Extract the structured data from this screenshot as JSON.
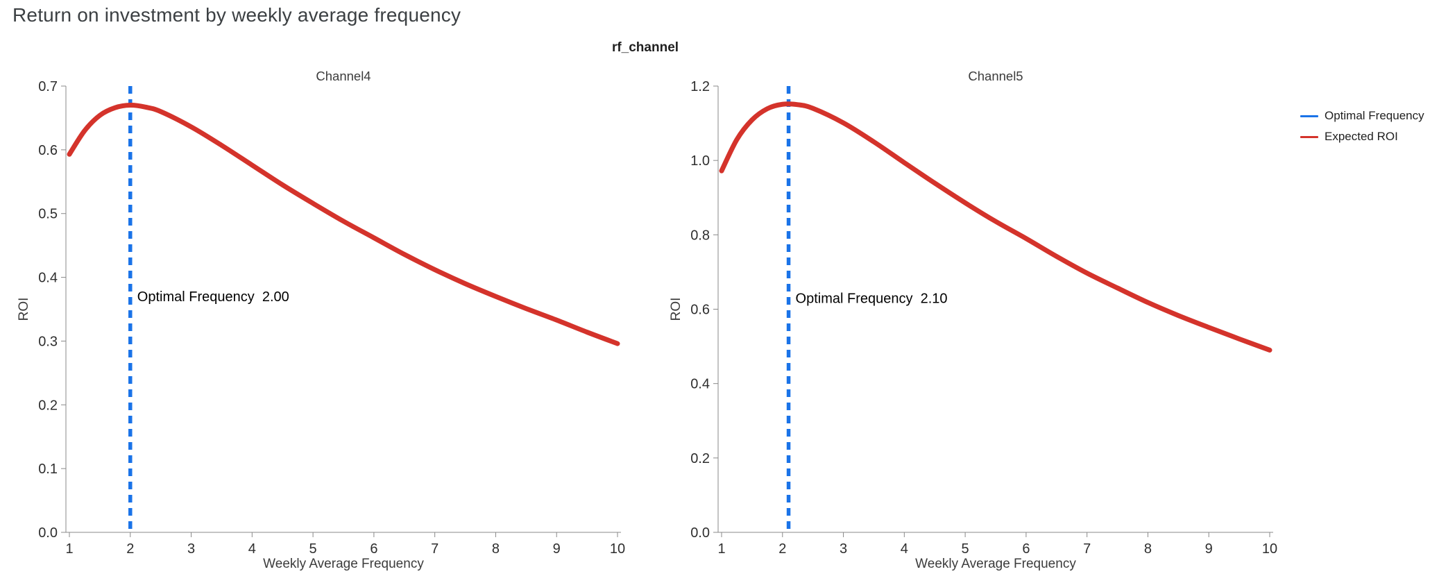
{
  "title": "Return on investment by weekly average frequency",
  "facet_label": "rf_channel",
  "legend": {
    "items": [
      {
        "label": "Optimal Frequency",
        "color": "#1a73e8"
      },
      {
        "label": "Expected ROI",
        "color": "#d4332b"
      }
    ]
  },
  "colors": {
    "optimal_frequency_blue": "#1a73e8",
    "expected_roi_red": "#d4332b",
    "axis_gray": "#888888",
    "tick_label": "#2e2e2e",
    "axis_title": "#3c3c3c"
  },
  "chart_data": [
    {
      "type": "line",
      "title": "Channel4",
      "xlabel": "Weekly Average Frequency",
      "ylabel": "ROI",
      "xlim": [
        1,
        10
      ],
      "ylim": [
        0,
        0.7
      ],
      "x_ticks": [
        1,
        2,
        3,
        4,
        5,
        6,
        7,
        8,
        9,
        10
      ],
      "x_tick_labels": [
        "1",
        "2",
        "3",
        "4",
        "5",
        "6",
        "7",
        "8",
        "9",
        "10"
      ],
      "y_ticks": [
        0,
        0.1,
        0.2,
        0.3,
        0.4,
        0.5,
        0.6,
        0.7
      ],
      "y_tick_labels": [
        "0.0",
        "0.1",
        "0.2",
        "0.3",
        "0.4",
        "0.5",
        "0.6",
        "0.7"
      ],
      "grid": false,
      "rule": {
        "name": "Optimal Frequency",
        "x": 2.0,
        "color": "#1a73e8"
      },
      "annotation": {
        "label": "Optimal Frequency",
        "value": "2.00",
        "y": 0.37
      },
      "series": [
        {
          "name": "Expected ROI",
          "color": "#d4332b",
          "x": [
            1,
            1.25,
            1.5,
            1.75,
            2,
            2.25,
            2.5,
            3,
            3.5,
            4,
            4.5,
            5,
            5.5,
            6,
            6.5,
            7,
            7.5,
            8,
            8.5,
            9,
            9.5,
            10
          ],
          "y": [
            0.593,
            0.63,
            0.654,
            0.666,
            0.67,
            0.667,
            0.66,
            0.636,
            0.607,
            0.576,
            0.545,
            0.516,
            0.488,
            0.462,
            0.436,
            0.412,
            0.39,
            0.37,
            0.351,
            0.333,
            0.314,
            0.296
          ]
        }
      ]
    },
    {
      "type": "line",
      "title": "Channel5",
      "xlabel": "Weekly Average Frequency",
      "ylabel": "ROI",
      "xlim": [
        1,
        10
      ],
      "ylim": [
        0,
        1.2
      ],
      "x_ticks": [
        1,
        2,
        3,
        4,
        5,
        6,
        7,
        8,
        9,
        10
      ],
      "x_tick_labels": [
        "1",
        "2",
        "3",
        "4",
        "5",
        "6",
        "7",
        "8",
        "9",
        "10"
      ],
      "y_ticks": [
        0,
        0.2,
        0.4,
        0.6,
        0.8,
        1.0,
        1.2
      ],
      "y_tick_labels": [
        "0.0",
        "0.2",
        "0.4",
        "0.6",
        "0.8",
        "1.0",
        "1.2"
      ],
      "grid": false,
      "rule": {
        "name": "Optimal Frequency",
        "x": 2.1,
        "color": "#1a73e8"
      },
      "annotation": {
        "label": "Optimal Frequency",
        "value": "2.10",
        "y": 0.63
      },
      "series": [
        {
          "name": "Expected ROI",
          "color": "#d4332b",
          "x": [
            1,
            1.25,
            1.5,
            1.75,
            2,
            2.25,
            2.5,
            3,
            3.5,
            4,
            4.5,
            5,
            5.5,
            6,
            6.5,
            7,
            7.5,
            8,
            8.5,
            9,
            9.5,
            10
          ],
          "y": [
            0.972,
            1.056,
            1.109,
            1.139,
            1.151,
            1.15,
            1.14,
            1.101,
            1.05,
            0.994,
            0.939,
            0.886,
            0.836,
            0.79,
            0.742,
            0.697,
            0.657,
            0.618,
            0.583,
            0.551,
            0.52,
            0.49
          ]
        }
      ]
    }
  ]
}
